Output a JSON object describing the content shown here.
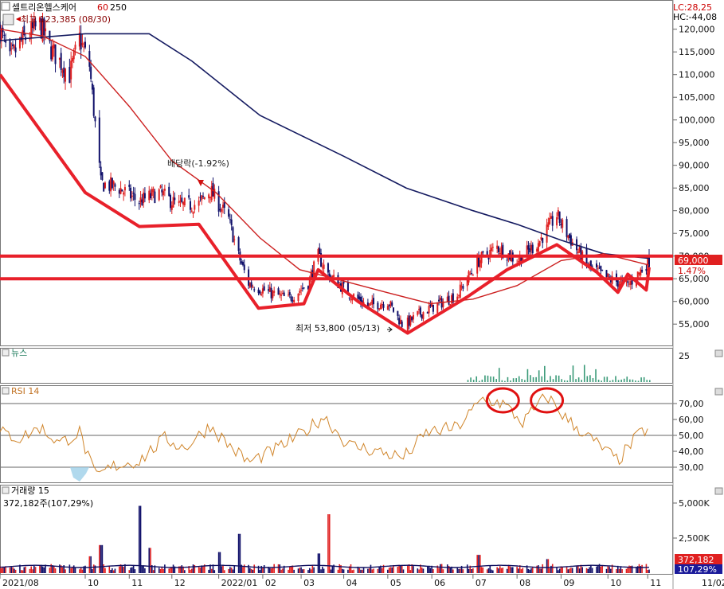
{
  "header": {
    "title": "셀트리온헬스케어",
    "ma_periods": [
      "60",
      "250"
    ],
    "high_label": "최고 123,385 (08/30)",
    "lc": "LC:28,25",
    "hc": "HC:-44,08"
  },
  "price_panel": {
    "last_price": "69,000",
    "change_pct": "1.47%",
    "low_label": "최저 53,800 (05/13)",
    "dividend_label": "배당락(-1.92%)",
    "ticks": [
      {
        "v": 120000,
        "label": "120,000"
      },
      {
        "v": 115000,
        "label": "115,000"
      },
      {
        "v": 110000,
        "label": "110,000"
      },
      {
        "v": 105000,
        "label": "105,000"
      },
      {
        "v": 100000,
        "label": "100,000"
      },
      {
        "v": 95000,
        "label": "95,000"
      },
      {
        "v": 90000,
        "label": "90,000"
      },
      {
        "v": 85000,
        "label": "85,000"
      },
      {
        "v": 80000,
        "label": "80,000"
      },
      {
        "v": 75000,
        "label": "75,000"
      },
      {
        "v": 70000,
        "label": "70,000"
      },
      {
        "v": 65000,
        "label": "65,000"
      },
      {
        "v": 60000,
        "label": "60,000"
      },
      {
        "v": 55000,
        "label": "55,000"
      }
    ]
  },
  "news_panel": {
    "label": "뉴스",
    "tick": "25"
  },
  "rsi_panel": {
    "label": "RSI 14",
    "ticks": [
      {
        "v": 70,
        "label": "70,00"
      },
      {
        "v": 60,
        "label": "60,00"
      },
      {
        "v": 50,
        "label": "50,00"
      },
      {
        "v": 40,
        "label": "40,00"
      },
      {
        "v": 30,
        "label": "30,00"
      }
    ]
  },
  "volume_panel": {
    "label": "거래량 15",
    "sub_label": "372,182주(107,29%)",
    "last_volume": "372,182",
    "last_pct": "107,29%",
    "ticks": [
      {
        "v": 5000,
        "label": "5,000K"
      },
      {
        "v": 2500,
        "label": "2,500K"
      }
    ]
  },
  "x_axis": {
    "labels": [
      "2021/08",
      "10",
      "11",
      "12",
      "2022/01",
      "02",
      "03",
      "04",
      "05",
      "06",
      "07",
      "08",
      "09",
      "10",
      "11",
      "11/02"
    ]
  },
  "colors": {
    "up": "#e02020",
    "down": "#10106a",
    "ma60": "#cc2020",
    "ma250": "#141a60",
    "trend": "#e8202a",
    "rsi": "#d0852a",
    "news": "#3a9a78"
  },
  "chart_data": {
    "type": "candlestick",
    "x_range": [
      "2021-08-02",
      "2022-11-02"
    ],
    "y_range": [
      51000,
      124000
    ],
    "horizontal_levels": [
      70000,
      65000
    ],
    "annotations": [
      {
        "text": "최고 123,385 (08/30)",
        "date": "2021-08-30",
        "value": 123385
      },
      {
        "text": "최저 53,800 (05/13)",
        "date": "2022-05-13",
        "value": 53800
      },
      {
        "text": "배당락(-1.92%)",
        "date": "2021-12-28",
        "value": 84500
      }
    ],
    "close_path": [
      [
        "2021-08-02",
        120000
      ],
      [
        "2021-08-09",
        113000
      ],
      [
        "2021-08-16",
        117000
      ],
      [
        "2021-08-30",
        121000
      ],
      [
        "2021-09-06",
        116000
      ],
      [
        "2021-09-20",
        110000
      ],
      [
        "2021-09-27",
        118000
      ],
      [
        "2021-10-04",
        112000
      ],
      [
        "2021-10-12",
        86000
      ],
      [
        "2021-10-25",
        85000
      ],
      [
        "2021-11-08",
        82000
      ],
      [
        "2021-11-22",
        84000
      ],
      [
        "2021-12-06",
        81000
      ],
      [
        "2021-12-20",
        81500
      ],
      [
        "2021-12-28",
        84500
      ],
      [
        "2022-01-10",
        78000
      ],
      [
        "2022-01-17",
        70000
      ],
      [
        "2022-01-24",
        64000
      ],
      [
        "2022-02-07",
        62000
      ],
      [
        "2022-02-21",
        60500
      ],
      [
        "2022-03-07",
        64000
      ],
      [
        "2022-03-14",
        70000
      ],
      [
        "2022-03-21",
        66000
      ],
      [
        "2022-04-04",
        62000
      ],
      [
        "2022-04-18",
        59000
      ],
      [
        "2022-05-02",
        60000
      ],
      [
        "2022-05-13",
        54500
      ],
      [
        "2022-05-23",
        57000
      ],
      [
        "2022-06-07",
        59500
      ],
      [
        "2022-06-20",
        61500
      ],
      [
        "2022-07-05",
        69000
      ],
      [
        "2022-07-18",
        72000
      ],
      [
        "2022-08-01",
        69000
      ],
      [
        "2022-08-16",
        73000
      ],
      [
        "2022-08-29",
        79000
      ],
      [
        "2022-09-05",
        75000
      ],
      [
        "2022-09-19",
        68000
      ],
      [
        "2022-10-04",
        65000
      ],
      [
        "2022-10-18",
        63500
      ],
      [
        "2022-10-25",
        66000
      ],
      [
        "2022-11-02",
        69000
      ]
    ],
    "ma60": [
      [
        "2021-08-02",
        120000
      ],
      [
        "2021-09-01",
        118500
      ],
      [
        "2021-10-01",
        114000
      ],
      [
        "2021-11-01",
        103000
      ],
      [
        "2021-12-01",
        91000
      ],
      [
        "2022-01-01",
        84000
      ],
      [
        "2022-02-01",
        74000
      ],
      [
        "2022-03-01",
        67000
      ],
      [
        "2022-04-01",
        64500
      ],
      [
        "2022-05-01",
        62000
      ],
      [
        "2022-06-01",
        59500
      ],
      [
        "2022-07-01",
        60500
      ],
      [
        "2022-08-01",
        63500
      ],
      [
        "2022-09-01",
        69000
      ],
      [
        "2022-10-01",
        70500
      ],
      [
        "2022-11-02",
        68000
      ]
    ],
    "ma250": [
      [
        "2021-08-02",
        117500
      ],
      [
        "2021-10-01",
        119000
      ],
      [
        "2021-11-15",
        119000
      ],
      [
        "2021-12-15",
        113000
      ],
      [
        "2022-02-01",
        101000
      ],
      [
        "2022-04-01",
        92000
      ],
      [
        "2022-05-15",
        85000
      ],
      [
        "2022-07-01",
        80000
      ],
      [
        "2022-08-01",
        77000
      ],
      [
        "2022-09-01",
        73500
      ],
      [
        "2022-10-01",
        70500
      ],
      [
        "2022-11-02",
        69500
      ]
    ],
    "trendlines": [
      [
        [
          "2021-08-02",
          110000
        ],
        [
          "2021-10-01",
          84000
        ],
        [
          "2021-11-08",
          76500
        ],
        [
          "2021-12-20",
          77000
        ],
        [
          "2022-01-31",
          58500
        ],
        [
          "2022-03-04",
          59500
        ],
        [
          "2022-03-14",
          67000
        ],
        [
          "2022-04-11",
          60000
        ],
        [
          "2022-05-16",
          53000
        ],
        [
          "2022-06-27",
          61000
        ],
        [
          "2022-07-25",
          67000
        ],
        [
          "2022-08-29",
          72500
        ],
        [
          "2022-09-26",
          66500
        ],
        [
          "2022-10-11",
          62000
        ],
        [
          "2022-10-18",
          66000
        ],
        [
          "2022-10-31",
          62500
        ],
        [
          "2022-11-02",
          67500
        ]
      ]
    ],
    "rsi": {
      "y_range": [
        20,
        80
      ],
      "levels": [
        70,
        50,
        30
      ],
      "path": [
        [
          "2021-08-02",
          52
        ],
        [
          "2021-08-16",
          48
        ],
        [
          "2021-08-30",
          55
        ],
        [
          "2021-09-13",
          45
        ],
        [
          "2021-09-27",
          52
        ],
        [
          "2021-10-08",
          24
        ],
        [
          "2021-10-22",
          31
        ],
        [
          "2021-11-08",
          34
        ],
        [
          "2021-11-26",
          48
        ],
        [
          "2021-12-10",
          42
        ],
        [
          "2021-12-28",
          56
        ],
        [
          "2022-01-10",
          44
        ],
        [
          "2022-01-24",
          33
        ],
        [
          "2022-02-14",
          42
        ],
        [
          "2022-03-04",
          52
        ],
        [
          "2022-03-18",
          62
        ],
        [
          "2022-04-04",
          44
        ],
        [
          "2022-04-25",
          40
        ],
        [
          "2022-05-13",
          36
        ],
        [
          "2022-05-30",
          52
        ],
        [
          "2022-06-20",
          55
        ],
        [
          "2022-07-08",
          73
        ],
        [
          "2022-07-22",
          70
        ],
        [
          "2022-08-05",
          58
        ],
        [
          "2022-08-22",
          75
        ],
        [
          "2022-09-05",
          60
        ],
        [
          "2022-09-26",
          45
        ],
        [
          "2022-10-11",
          34
        ],
        [
          "2022-10-25",
          50
        ],
        [
          "2022-11-02",
          55
        ]
      ],
      "circled": [
        "2022-07-22",
        "2022-08-22"
      ]
    },
    "volume": {
      "unit": "K shares",
      "y_range": [
        0,
        6000
      ],
      "spikes": [
        [
          "2021-10-04",
          1200
        ],
        [
          "2021-10-12",
          2000
        ],
        [
          "2021-11-08",
          4800
        ],
        [
          "2021-11-15",
          1800
        ],
        [
          "2022-01-03",
          1500
        ],
        [
          "2022-01-17",
          2800
        ],
        [
          "2022-03-14",
          1400
        ],
        [
          "2022-03-21",
          4200
        ],
        [
          "2022-07-05",
          1300
        ],
        [
          "2022-08-22",
          1000
        ]
      ],
      "base": 500
    },
    "news": {
      "y_range": [
        0,
        25
      ],
      "active_from": "2022-06-27"
    }
  }
}
